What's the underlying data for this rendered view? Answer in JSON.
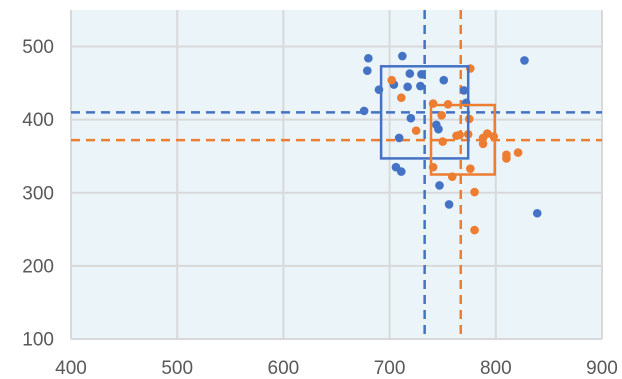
{
  "chart_data": {
    "type": "scatter",
    "title": "",
    "xlabel": "",
    "ylabel": "",
    "xlim": [
      400,
      900
    ],
    "ylim": [
      100,
      550
    ],
    "xticks": [
      400,
      500,
      600,
      700,
      800,
      900
    ],
    "yticks": [
      100,
      200,
      300,
      400,
      500
    ],
    "grid": true,
    "legend": "none",
    "colors": {
      "plot_background": "#eaf4f9",
      "grid": "#d9d9d9",
      "tick_text": "#595959"
    },
    "series": [
      {
        "color": "#4472c4",
        "points": [
          {
            "x": 680,
            "y": 484
          },
          {
            "x": 679,
            "y": 467
          },
          {
            "x": 712,
            "y": 487
          },
          {
            "x": 827,
            "y": 481
          },
          {
            "x": 751,
            "y": 454
          },
          {
            "x": 719,
            "y": 463
          },
          {
            "x": 730,
            "y": 462
          },
          {
            "x": 704,
            "y": 448
          },
          {
            "x": 717,
            "y": 445
          },
          {
            "x": 729,
            "y": 446
          },
          {
            "x": 690,
            "y": 441
          },
          {
            "x": 770,
            "y": 440
          },
          {
            "x": 772,
            "y": 423
          },
          {
            "x": 676,
            "y": 412
          },
          {
            "x": 720,
            "y": 402
          },
          {
            "x": 744,
            "y": 393
          },
          {
            "x": 746,
            "y": 387
          },
          {
            "x": 709,
            "y": 375
          },
          {
            "x": 706,
            "y": 335
          },
          {
            "x": 711,
            "y": 329
          },
          {
            "x": 747,
            "y": 310
          },
          {
            "x": 756,
            "y": 284
          },
          {
            "x": 839,
            "y": 272
          }
        ],
        "mean": {
          "x": 733,
          "y": 410
        },
        "box": {
          "x": [
            692,
            774
          ],
          "y": [
            347,
            473
          ]
        }
      },
      {
        "color": "#ed7d31",
        "points": [
          {
            "x": 702,
            "y": 454
          },
          {
            "x": 776,
            "y": 470
          },
          {
            "x": 711,
            "y": 430
          },
          {
            "x": 741,
            "y": 422
          },
          {
            "x": 755,
            "y": 421
          },
          {
            "x": 749,
            "y": 406
          },
          {
            "x": 775,
            "y": 401
          },
          {
            "x": 725,
            "y": 385
          },
          {
            "x": 763,
            "y": 378
          },
          {
            "x": 766,
            "y": 379
          },
          {
            "x": 774,
            "y": 380
          },
          {
            "x": 788,
            "y": 375
          },
          {
            "x": 792,
            "y": 381
          },
          {
            "x": 798,
            "y": 377
          },
          {
            "x": 750,
            "y": 370
          },
          {
            "x": 788,
            "y": 367
          },
          {
            "x": 821,
            "y": 355
          },
          {
            "x": 810,
            "y": 352
          },
          {
            "x": 810,
            "y": 347
          },
          {
            "x": 741,
            "y": 335
          },
          {
            "x": 776,
            "y": 333
          },
          {
            "x": 759,
            "y": 322
          },
          {
            "x": 780,
            "y": 301
          },
          {
            "x": 780,
            "y": 249
          }
        ],
        "mean": {
          "x": 767,
          "y": 372
        },
        "box": {
          "x": [
            739,
            799
          ],
          "y": [
            325,
            420
          ]
        }
      }
    ]
  }
}
